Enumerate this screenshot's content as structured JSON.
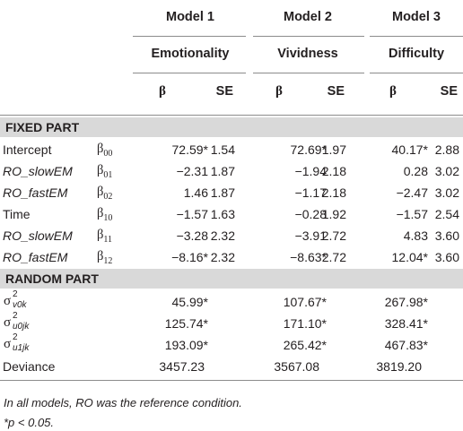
{
  "models": [
    {
      "title": "Model 1",
      "outcome": "Emotionality"
    },
    {
      "title": "Model 2",
      "outcome": "Vividness"
    },
    {
      "title": "Model 3",
      "outcome": "Difficulty"
    }
  ],
  "col_heads": {
    "beta": "β",
    "se": "SE"
  },
  "fixed_title": "FIXED PART",
  "random_title": "RANDOM PART",
  "fixed_rows": [
    {
      "label": "Intercept",
      "italic": false,
      "coef": "β",
      "sub": "00",
      "vals": [
        "72.59*",
        "1.54",
        "72.69*",
        "1.97",
        "40.17*",
        "2.88"
      ]
    },
    {
      "label": "RO_slowEM",
      "italic": true,
      "coef": "β",
      "sub": "01",
      "vals": [
        "−2.31",
        "1.87",
        "−1.94",
        "2.18",
        "0.28",
        "3.02"
      ]
    },
    {
      "label": "RO_fastEM",
      "italic": true,
      "coef": "β",
      "sub": "02",
      "vals": [
        "1.46",
        "1.87",
        "−1.17",
        "2.18",
        "−2.47",
        "3.02"
      ]
    },
    {
      "label": "Time",
      "italic": false,
      "coef": "β",
      "sub": "10",
      "vals": [
        "−1.57",
        "1.63",
        "−0.28",
        "1.92",
        "−1.57",
        "2.54"
      ]
    },
    {
      "label": "RO_slowEM",
      "italic": true,
      "coef": "β",
      "sub": "11",
      "vals": [
        "−3.28",
        "2.32",
        "−3.91",
        "2.72",
        "4.83",
        "3.60"
      ]
    },
    {
      "label": "RO_fastEM",
      "italic": true,
      "coef": "β",
      "sub": "12",
      "vals": [
        "−8.16*",
        "2.32",
        "−8.63*",
        "2.72",
        "12.04*",
        "3.60"
      ]
    }
  ],
  "random_rows": [
    {
      "sigma": "σ",
      "sup": "2",
      "sub": "v0k",
      "vals": [
        "45.99*",
        "107.67*",
        "267.98*"
      ]
    },
    {
      "sigma": "σ",
      "sup": "2",
      "sub": "u0jk",
      "vals": [
        "125.74*",
        "171.10*",
        "328.41*"
      ]
    },
    {
      "sigma": "σ",
      "sup": "2",
      "sub": "u1jk",
      "vals": [
        "193.09*",
        "265.42*",
        "467.83*"
      ]
    }
  ],
  "deviance": {
    "label": "Deviance",
    "vals": [
      "3457.23",
      "3567.08",
      "3819.20"
    ]
  },
  "notes": [
    "In all models, RO was the reference condition.",
    "*p < 0.05."
  ]
}
